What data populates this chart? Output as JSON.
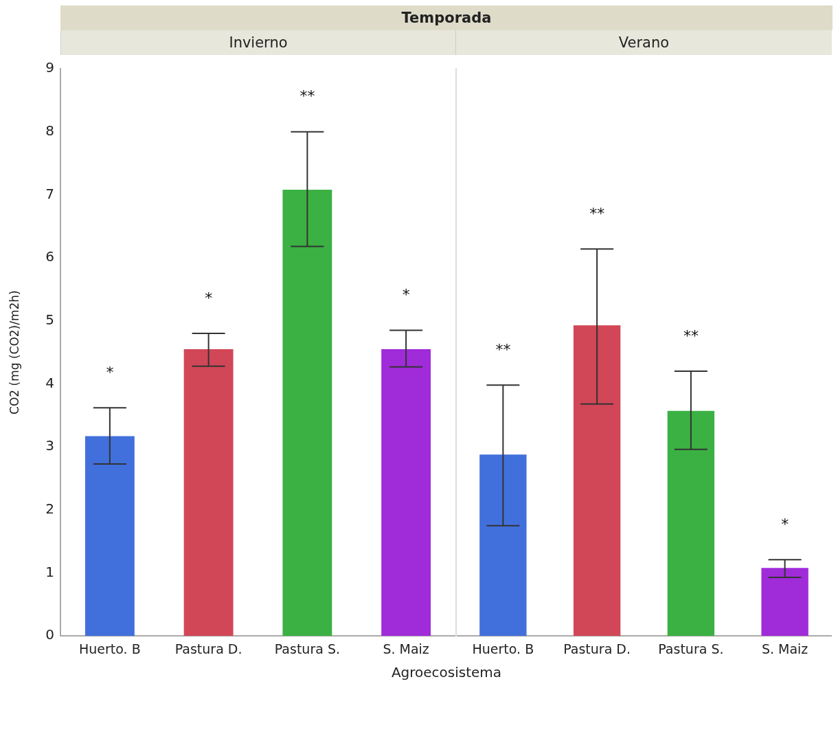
{
  "chart_data": [
    {
      "type": "bar",
      "title": "Invierno",
      "subtitle": "Temporada",
      "xlabel": "Agroecosistema",
      "ylabel": "CO2 (mg (CO2)/m2h)",
      "categories": [
        "Huerto. B",
        "Pastura D.",
        "Pastura S.",
        "S. Maiz"
      ],
      "values": [
        3.17,
        4.55,
        7.08,
        4.55
      ],
      "colors": [
        "#4170dc",
        "#d14757",
        "#3bb143",
        "#a02bd8"
      ],
      "errors": [
        [
          2.73,
          3.62
        ],
        [
          4.28,
          4.8
        ],
        [
          6.18,
          8.0
        ],
        [
          4.27,
          4.85
        ]
      ],
      "ylim": [
        0,
        9
      ],
      "yticks": [
        0,
        1,
        2,
        3,
        4,
        5,
        6,
        7,
        8,
        9
      ],
      "annotations": [
        "*",
        "*",
        "**",
        "*"
      ]
    },
    {
      "type": "bar",
      "title": "Verano",
      "categories": [
        "Huerto. B",
        "Pastura D.",
        "Pastura S.",
        "S. Maiz"
      ],
      "values": [
        2.88,
        4.93,
        3.57,
        1.08
      ],
      "colors": [
        "#4170dc",
        "#d14757",
        "#3bb143",
        "#a02bd8"
      ],
      "errors": [
        [
          1.75,
          3.98
        ],
        [
          3.68,
          6.14
        ],
        [
          2.96,
          4.2
        ],
        [
          0.93,
          1.21
        ]
      ],
      "ylim": [
        0,
        9
      ],
      "yticks": [
        0,
        1,
        2,
        3,
        4,
        5,
        6,
        7,
        8,
        9
      ],
      "tick_labels": "x",
      "annotations": [
        "**",
        "**",
        "**",
        "*"
      ]
    }
  ]
}
